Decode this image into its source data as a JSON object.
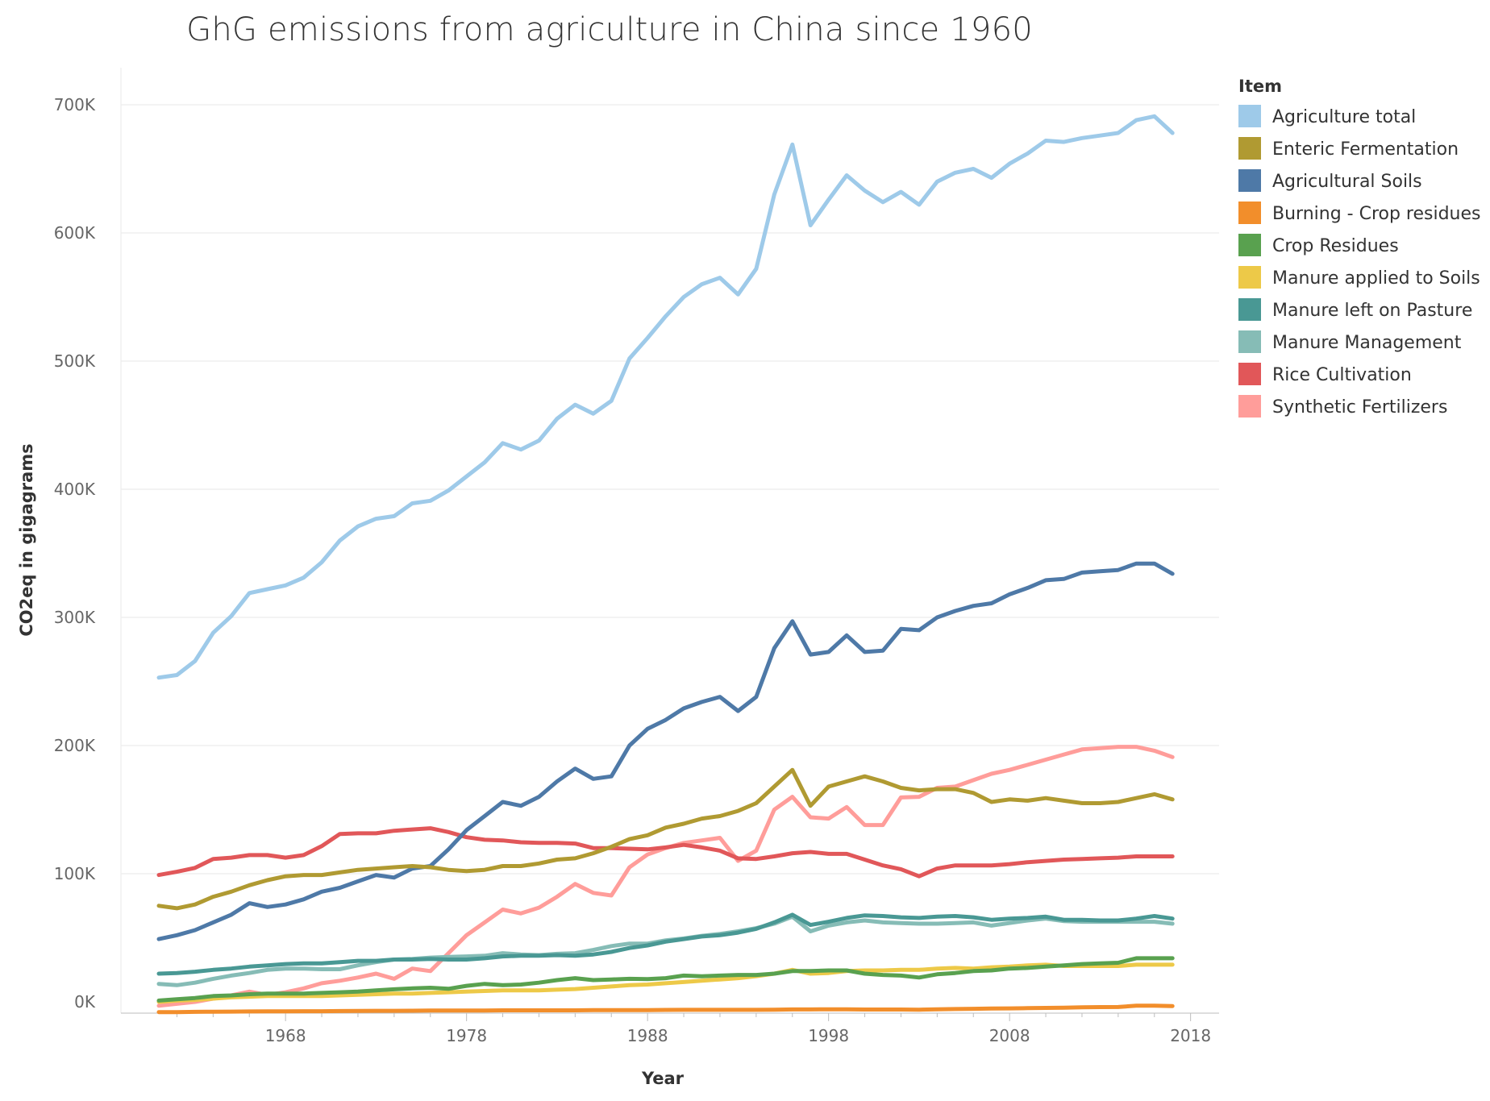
{
  "chart_data": {
    "type": "line",
    "title": "GhG emissions from agriculture in China since 1960",
    "xlabel": "Year",
    "ylabel": "CO2eq in gigagrams",
    "xlim": [
      1961,
      2017
    ],
    "ylim": [
      0,
      700000
    ],
    "x_ticks": [
      1968,
      1978,
      1988,
      1998,
      2008,
      2018
    ],
    "x_tick_labels": [
      "1968",
      "1978",
      "1988",
      "1998",
      "2008",
      "2018"
    ],
    "y_ticks": [
      0,
      100000,
      200000,
      300000,
      400000,
      500000,
      600000,
      700000
    ],
    "y_tick_labels": [
      "0K",
      "100K",
      "200K",
      "300K",
      "400K",
      "500K",
      "600K",
      "700K"
    ],
    "grid": true,
    "legend": {
      "title": "Item",
      "placement": "right"
    },
    "x": [
      1961,
      1962,
      1963,
      1964,
      1965,
      1966,
      1967,
      1968,
      1969,
      1970,
      1971,
      1972,
      1973,
      1974,
      1975,
      1976,
      1977,
      1978,
      1979,
      1980,
      1981,
      1982,
      1983,
      1984,
      1985,
      1986,
      1987,
      1988,
      1989,
      1990,
      1991,
      1992,
      1993,
      1994,
      1995,
      1996,
      1997,
      1998,
      1999,
      2000,
      2001,
      2002,
      2003,
      2004,
      2005,
      2006,
      2007,
      2008,
      2009,
      2010,
      2011,
      2012,
      2013,
      2014,
      2015,
      2016,
      2017
    ],
    "series": [
      {
        "name": "Agriculture total",
        "color": "#9ecae9",
        "values": [
          253000,
          255000,
          266000,
          288000,
          301000,
          319000,
          322000,
          325000,
          331000,
          343000,
          360000,
          371000,
          377000,
          379000,
          389000,
          391000,
          399000,
          410000,
          421000,
          436000,
          431000,
          438000,
          455000,
          466000,
          459000,
          469000,
          502000,
          518000,
          535000,
          550000,
          560000,
          565000,
          552000,
          572000,
          630000,
          669000,
          606000,
          626000,
          645000,
          633000,
          624000,
          632000,
          622000,
          640000,
          647000,
          650000,
          643000,
          654000,
          662000,
          672000,
          671000,
          674000,
          676000,
          678000,
          688000,
          691000,
          678000
        ]
      },
      {
        "name": "Enteric Fermentation",
        "color": "#b09a32",
        "values": [
          75000,
          73000,
          76000,
          82000,
          86000,
          91000,
          95000,
          98000,
          99000,
          99000,
          101000,
          103000,
          104000,
          105000,
          106000,
          105000,
          103000,
          102000,
          103000,
          106000,
          106000,
          108000,
          111000,
          112000,
          116000,
          121000,
          127000,
          130000,
          136000,
          139000,
          143000,
          145000,
          149000,
          155000,
          168000,
          181000,
          153000,
          168000,
          172000,
          176000,
          172000,
          167000,
          165000,
          166000,
          166000,
          163000,
          156000,
          158000,
          157000,
          159000,
          157000,
          155000,
          155000,
          156000,
          159000,
          162000,
          158000
        ]
      },
      {
        "name": "Agricultural Soils",
        "color": "#4e79a7",
        "values": [
          49000,
          52000,
          56000,
          62000,
          68000,
          77000,
          74000,
          76000,
          80000,
          86000,
          89000,
          94000,
          99000,
          97000,
          104000,
          106000,
          119000,
          134000,
          145000,
          156000,
          153000,
          160000,
          172000,
          182000,
          174000,
          176000,
          200000,
          213000,
          220000,
          229000,
          234000,
          238000,
          227000,
          238000,
          276000,
          297000,
          271000,
          273000,
          286000,
          273000,
          274000,
          291000,
          290000,
          300000,
          305000,
          309000,
          311000,
          318000,
          323000,
          329000,
          330000,
          335000,
          336000,
          337000,
          342000,
          342000,
          334000
        ]
      },
      {
        "name": "Burning - Crop residues",
        "color": "#f28e2b",
        "values": [
          -8000,
          -8000,
          -7800,
          -7700,
          -7600,
          -7500,
          -7400,
          -7400,
          -7300,
          -7300,
          -7200,
          -7100,
          -7000,
          -7000,
          -6900,
          -6800,
          -6800,
          -6700,
          -6700,
          -6600,
          -6600,
          -6600,
          -6600,
          -6600,
          -6500,
          -6500,
          -6400,
          -6400,
          -6300,
          -6200,
          -6200,
          -6200,
          -6200,
          -6200,
          -6100,
          -5900,
          -5900,
          -5800,
          -5800,
          -6000,
          -6000,
          -6000,
          -6100,
          -5800,
          -5600,
          -5400,
          -5200,
          -5100,
          -4900,
          -4700,
          -4500,
          -4300,
          -4100,
          -4000,
          -3000,
          -3000,
          -3300
        ]
      },
      {
        "name": "Crop Residues",
        "color": "#59a14f",
        "values": [
          1000,
          2000,
          3000,
          4500,
          5000,
          6000,
          6500,
          6500,
          6500,
          7000,
          7500,
          8000,
          9000,
          9800,
          10500,
          11000,
          10200,
          12500,
          14000,
          13000,
          13500,
          15000,
          17000,
          18500,
          17000,
          17500,
          18000,
          17800,
          18500,
          20500,
          20000,
          20500,
          21000,
          21000,
          22000,
          24000,
          24000,
          24500,
          24500,
          22000,
          21000,
          20500,
          19000,
          21500,
          22500,
          24000,
          24500,
          26000,
          26500,
          27500,
          28500,
          29500,
          30000,
          30500,
          34000,
          34000,
          34000
        ]
      },
      {
        "name": "Manure applied to Soils",
        "color": "#edc948",
        "values": [
          0,
          1000,
          1500,
          2500,
          3500,
          4000,
          4500,
          4500,
          4500,
          4500,
          5000,
          5500,
          6000,
          6500,
          6500,
          7000,
          7500,
          8000,
          8500,
          9000,
          9000,
          9000,
          9500,
          10000,
          11000,
          12000,
          13000,
          13500,
          14500,
          15500,
          16500,
          17500,
          18500,
          20000,
          22000,
          25000,
          22000,
          22500,
          24000,
          24500,
          24500,
          25000,
          25000,
          26000,
          26500,
          26000,
          27000,
          27500,
          28500,
          29000,
          28000,
          28000,
          28000,
          28000,
          29000,
          29000,
          29000
        ]
      },
      {
        "name": "Manure left on Pasture",
        "color": "#499894",
        "values": [
          22000,
          22500,
          23500,
          25000,
          26000,
          27500,
          28500,
          29500,
          30000,
          30000,
          31000,
          32000,
          32000,
          33000,
          33000,
          33500,
          33000,
          33000,
          34000,
          35500,
          36000,
          36000,
          36500,
          36000,
          37000,
          39000,
          42000,
          44000,
          47000,
          49000,
          51000,
          52000,
          54000,
          57000,
          62000,
          68000,
          60000,
          62500,
          65500,
          67500,
          67000,
          66000,
          65500,
          66500,
          67000,
          66000,
          64000,
          65000,
          65500,
          66500,
          64000,
          64000,
          63500,
          63500,
          65000,
          67000,
          65000
        ]
      },
      {
        "name": "Manure Management",
        "color": "#86bcb6",
        "values": [
          14000,
          13000,
          15000,
          18000,
          20500,
          22500,
          25000,
          26000,
          26000,
          25500,
          25500,
          28500,
          31000,
          33000,
          33500,
          34500,
          35000,
          35500,
          36000,
          38000,
          37000,
          36500,
          37500,
          38000,
          40500,
          43500,
          45500,
          45500,
          48000,
          49500,
          51500,
          53000,
          55000,
          57500,
          61000,
          66500,
          55000,
          59500,
          62000,
          63500,
          62000,
          61500,
          61000,
          61000,
          61500,
          62000,
          59500,
          61500,
          63500,
          65000,
          63000,
          62500,
          62500,
          62500,
          62500,
          62500,
          61000
        ]
      },
      {
        "name": "Rice Cultivation",
        "color": "#e15759",
        "values": [
          99000,
          101500,
          104500,
          111500,
          112500,
          114500,
          114500,
          112500,
          114500,
          121500,
          131000,
          131500,
          131500,
          133500,
          134500,
          135500,
          132500,
          128500,
          126500,
          126000,
          124500,
          124000,
          124000,
          123500,
          120000,
          120000,
          119500,
          119000,
          120500,
          122500,
          120500,
          118000,
          112000,
          111500,
          113500,
          116000,
          117000,
          115500,
          115500,
          111000,
          106500,
          103500,
          98000,
          104000,
          106500,
          106500,
          106500,
          107500,
          109000,
          110000,
          111000,
          111500,
          112000,
          112500,
          113500,
          113500,
          113500
        ]
      },
      {
        "name": "Synthetic Fertilizers",
        "color": "#ff9d9a",
        "values": [
          -3000,
          -1500,
          0,
          2500,
          5000,
          8000,
          5500,
          7500,
          10500,
          14500,
          16500,
          19000,
          22000,
          18000,
          26000,
          24000,
          38000,
          52000,
          62000,
          72000,
          69000,
          73500,
          82000,
          92000,
          85000,
          83000,
          105000,
          115000,
          120000,
          124000,
          126000,
          128000,
          110000,
          118000,
          150000,
          160000,
          144000,
          143000,
          152000,
          138000,
          138000,
          159500,
          160000,
          167000,
          168000,
          173000,
          178000,
          181000,
          185000,
          189000,
          193000,
          197000,
          198000,
          199000,
          199000,
          196000,
          191000
        ]
      }
    ]
  }
}
